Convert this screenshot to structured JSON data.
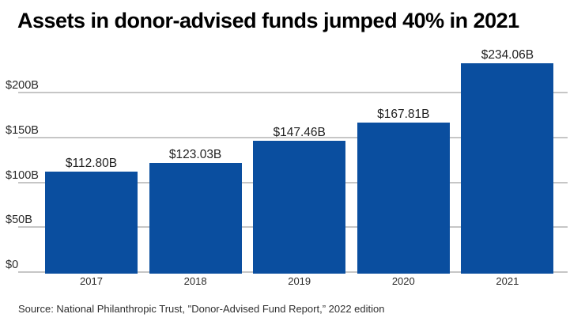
{
  "chart_data": {
    "type": "bar",
    "title": "Assets in donor-advised funds jumped 40% in 2021",
    "categories": [
      "2017",
      "2018",
      "2019",
      "2020",
      "2021"
    ],
    "values": [
      112.8,
      123.03,
      147.46,
      167.81,
      234.06
    ],
    "value_labels": [
      "$112.80B",
      "$123.03B",
      "$147.46B",
      "$167.81B",
      "$234.06B"
    ],
    "unit_hint": "USD billions",
    "xlabel": "",
    "ylabel": "",
    "ylim": [
      0,
      240
    ],
    "yticks": [
      {
        "v": 0,
        "label": "$0"
      },
      {
        "v": 50,
        "label": "$50B"
      },
      {
        "v": 100,
        "label": "$100B"
      },
      {
        "v": 150,
        "label": "$150B"
      },
      {
        "v": 200,
        "label": "$200B"
      }
    ],
    "grid": "horizontal",
    "legend_position": "none",
    "colors": {
      "bar": "#0a4e9f",
      "gridline": "#c6c6c6",
      "title_text": "#000000",
      "label_text": "#1f1f1f",
      "axis_text": "#2a2a2a",
      "background": "#ffffff"
    }
  },
  "source": {
    "text": "Source: National Philanthropic Trust, \"Donor-Advised Fund Report,” 2022 edition"
  }
}
